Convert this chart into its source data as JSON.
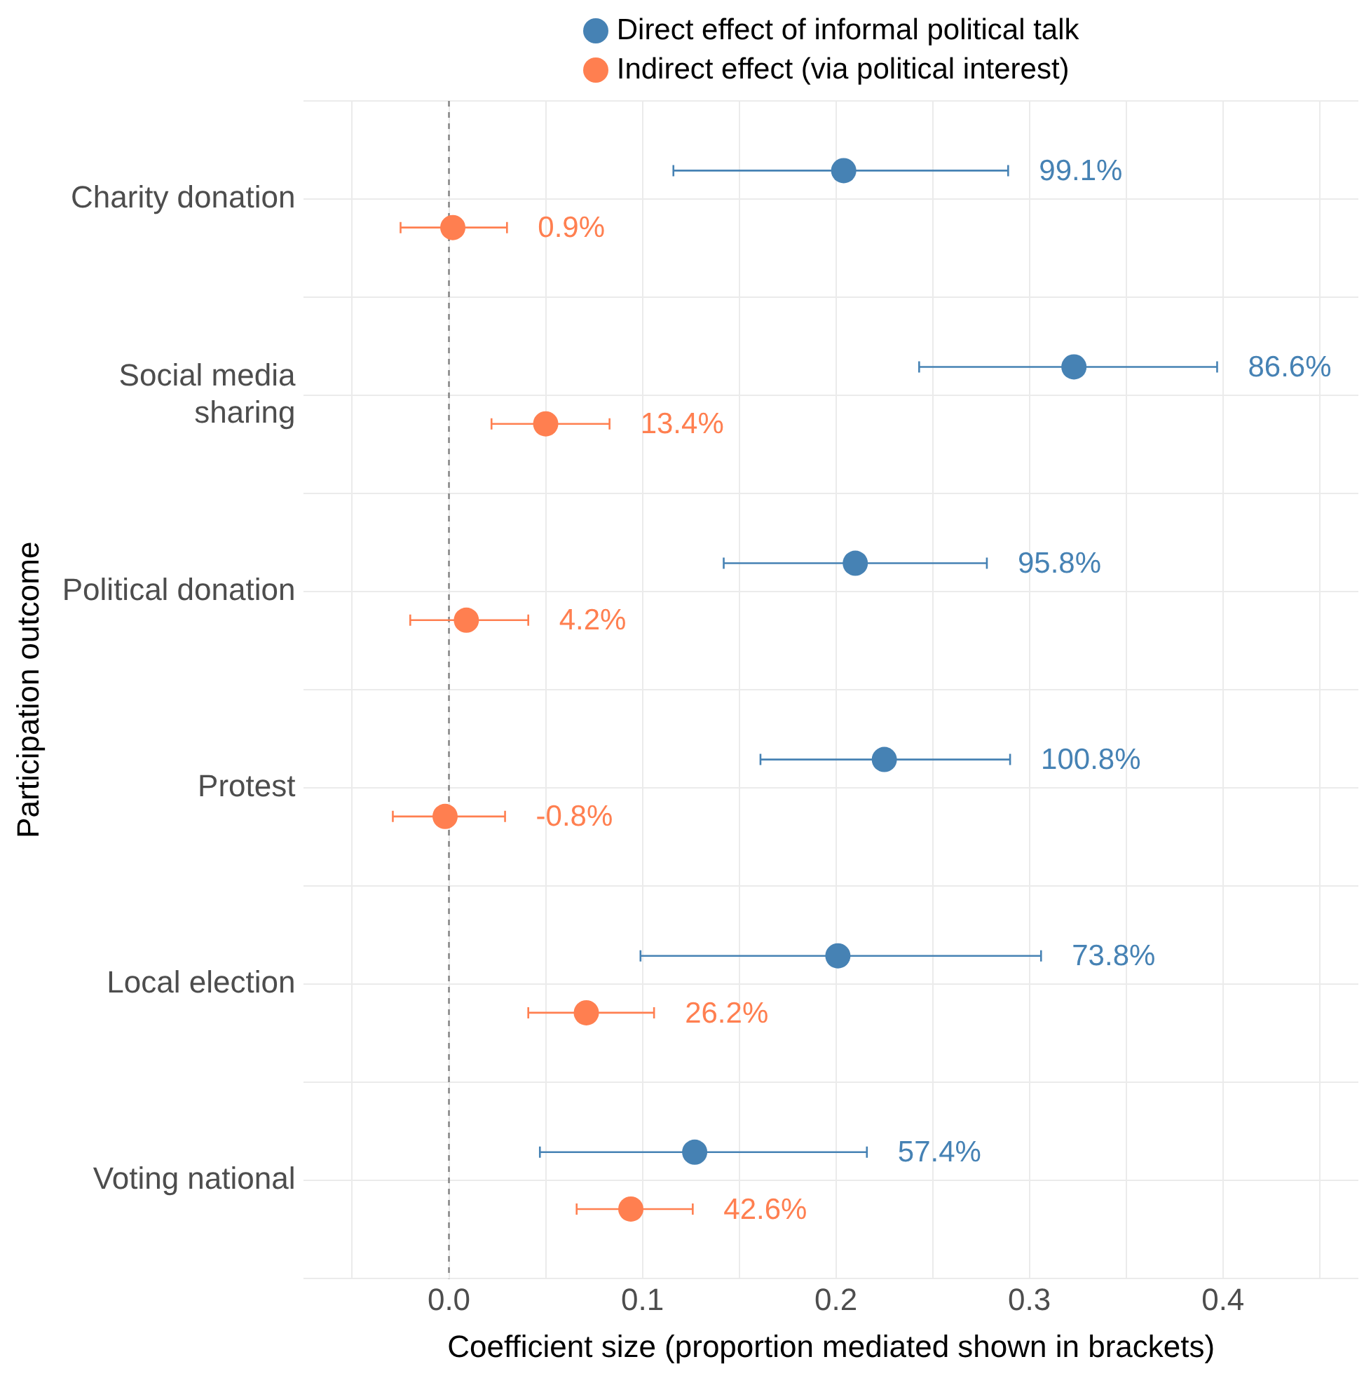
{
  "chart_data": {
    "type": "scatter",
    "orientation": "horizontal",
    "xlabel": "Coefficient size (proportion mediated shown in brackets)",
    "ylabel": "Participation outcome",
    "categories": [
      "Charity donation",
      "Social media\nsharing",
      "Political donation",
      "Protest",
      "Local election",
      "Voting national"
    ],
    "series": [
      {
        "name": "Direct effect of informal political talk",
        "color": "#4682b4",
        "values": [
          0.204,
          0.323,
          0.21,
          0.225,
          0.201,
          0.127
        ],
        "errors": [
          [
            0.116,
            0.289
          ],
          [
            0.243,
            0.397
          ],
          [
            0.142,
            0.278
          ],
          [
            0.161,
            0.29
          ],
          [
            0.099,
            0.306
          ],
          [
            0.047,
            0.216
          ]
        ]
      },
      {
        "name": "Indirect effect (via political interest)",
        "color": "#ff7f50",
        "values": [
          0.002,
          0.05,
          0.009,
          -0.002,
          0.071,
          0.094
        ],
        "errors": [
          [
            -0.025,
            0.03
          ],
          [
            0.022,
            0.083
          ],
          [
            -0.02,
            0.041
          ],
          [
            -0.029,
            0.029
          ],
          [
            0.041,
            0.106
          ],
          [
            0.066,
            0.126
          ]
        ]
      }
    ],
    "annotations": [
      "99.1%",
      "0.9%",
      "86.6%",
      "13.4%",
      "95.8%",
      "4.2%",
      "100.8%",
      "-0.8%",
      "73.8%",
      "26.2%",
      "57.4%",
      "42.6%"
    ],
    "xlim": [
      -0.075,
      0.47
    ],
    "xticks": [
      {
        "value": -0.05,
        "label": null
      },
      {
        "value": 0,
        "label": "0.0"
      },
      {
        "value": 0.05,
        "label": null
      },
      0.1,
      {
        "value": 0.15,
        "label": null
      },
      0.2,
      {
        "value": 0.25,
        "label": null
      },
      0.3,
      {
        "value": 0.35,
        "label": null
      },
      0.4,
      {
        "value": 0.45,
        "label": null
      }
    ],
    "ref_lines": [
      {
        "axis": "x",
        "value": 0,
        "color": "#808080",
        "line_style": "dashed"
      }
    ],
    "grid": true,
    "legend": "top",
    "marker": "circle"
  }
}
